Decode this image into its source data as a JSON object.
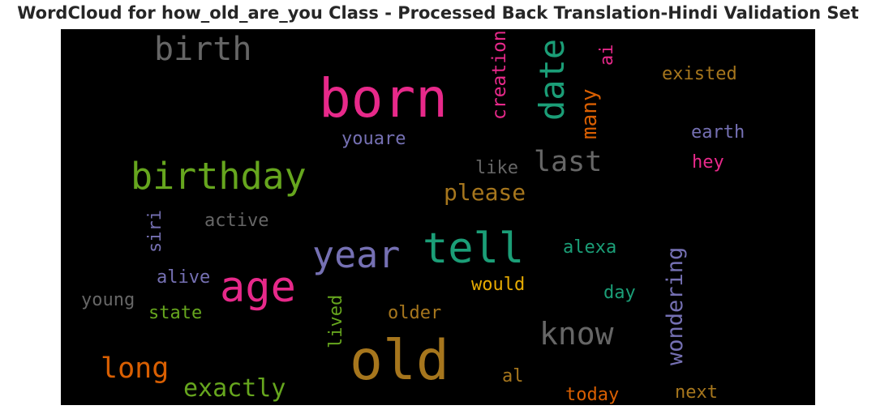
{
  "chart_data": {
    "type": "wordcloud",
    "title": "WordCloud for how_old_are_you Class - Processed Back Translation-Hindi Validation Set",
    "background": "#000000",
    "words": [
      {
        "text": "birth",
        "color": "#666666",
        "orientation": "horizontal"
      },
      {
        "text": "born",
        "color": "#e7298a",
        "orientation": "horizontal"
      },
      {
        "text": "creation",
        "color": "#e7298a",
        "orientation": "vertical"
      },
      {
        "text": "date",
        "color": "#1b9e77",
        "orientation": "vertical"
      },
      {
        "text": "ai",
        "color": "#e7298a",
        "orientation": "vertical"
      },
      {
        "text": "many",
        "color": "#d95f02",
        "orientation": "vertical"
      },
      {
        "text": "existed",
        "color": "#a6761d",
        "orientation": "horizontal"
      },
      {
        "text": "earth",
        "color": "#7570b3",
        "orientation": "horizontal"
      },
      {
        "text": "youare",
        "color": "#7570b3",
        "orientation": "horizontal"
      },
      {
        "text": "birthday",
        "color": "#66a61e",
        "orientation": "horizontal"
      },
      {
        "text": "like",
        "color": "#666666",
        "orientation": "horizontal"
      },
      {
        "text": "last",
        "color": "#666666",
        "orientation": "horizontal"
      },
      {
        "text": "hey",
        "color": "#e7298a",
        "orientation": "horizontal"
      },
      {
        "text": "please",
        "color": "#a6761d",
        "orientation": "horizontal"
      },
      {
        "text": "siri",
        "color": "#7570b3",
        "orientation": "vertical"
      },
      {
        "text": "active",
        "color": "#666666",
        "orientation": "horizontal"
      },
      {
        "text": "year",
        "color": "#7570b3",
        "orientation": "horizontal"
      },
      {
        "text": "tell",
        "color": "#1b9e77",
        "orientation": "horizontal"
      },
      {
        "text": "alexa",
        "color": "#1b9e77",
        "orientation": "horizontal"
      },
      {
        "text": "wondering",
        "color": "#7570b3",
        "orientation": "vertical"
      },
      {
        "text": "alive",
        "color": "#7570b3",
        "orientation": "horizontal"
      },
      {
        "text": "age",
        "color": "#e7298a",
        "orientation": "horizontal"
      },
      {
        "text": "would",
        "color": "#e6ab02",
        "orientation": "horizontal"
      },
      {
        "text": "day",
        "color": "#1b9e77",
        "orientation": "horizontal"
      },
      {
        "text": "young",
        "color": "#666666",
        "orientation": "horizontal"
      },
      {
        "text": "state",
        "color": "#66a61e",
        "orientation": "horizontal"
      },
      {
        "text": "lived",
        "color": "#66a61e",
        "orientation": "vertical"
      },
      {
        "text": "older",
        "color": "#a6761d",
        "orientation": "horizontal"
      },
      {
        "text": "know",
        "color": "#666666",
        "orientation": "horizontal"
      },
      {
        "text": "old",
        "color": "#a6761d",
        "orientation": "horizontal"
      },
      {
        "text": "long",
        "color": "#d95f02",
        "orientation": "horizontal"
      },
      {
        "text": "exactly",
        "color": "#66a61e",
        "orientation": "horizontal"
      },
      {
        "text": "al",
        "color": "#a6761d",
        "orientation": "horizontal"
      },
      {
        "text": "today",
        "color": "#d95f02",
        "orientation": "horizontal"
      },
      {
        "text": "next",
        "color": "#a6761d",
        "orientation": "horizontal"
      }
    ]
  }
}
